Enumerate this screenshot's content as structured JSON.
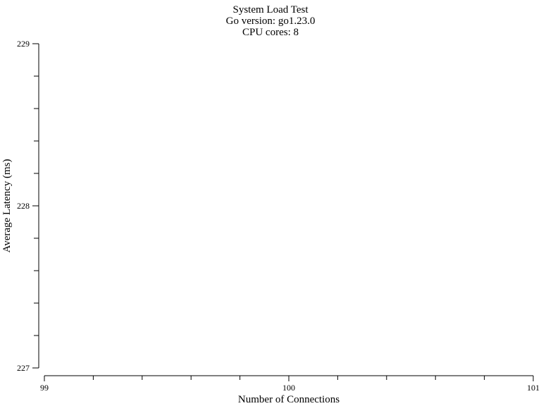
{
  "chart_data": {
    "type": "line",
    "title_lines": [
      "System Load Test",
      "Go version: go1.23.0",
      "CPU cores: 8"
    ],
    "xlabel": "Number of Connections",
    "ylabel": "Average Latency (ms)",
    "xlim": [
      99,
      101
    ],
    "ylim": [
      227,
      229
    ],
    "x_ticks": [
      99,
      100,
      101
    ],
    "y_ticks": [
      227,
      228,
      229
    ],
    "x_minor_step": 0.2,
    "y_minor_step": 0.2,
    "grid": false,
    "series": []
  }
}
